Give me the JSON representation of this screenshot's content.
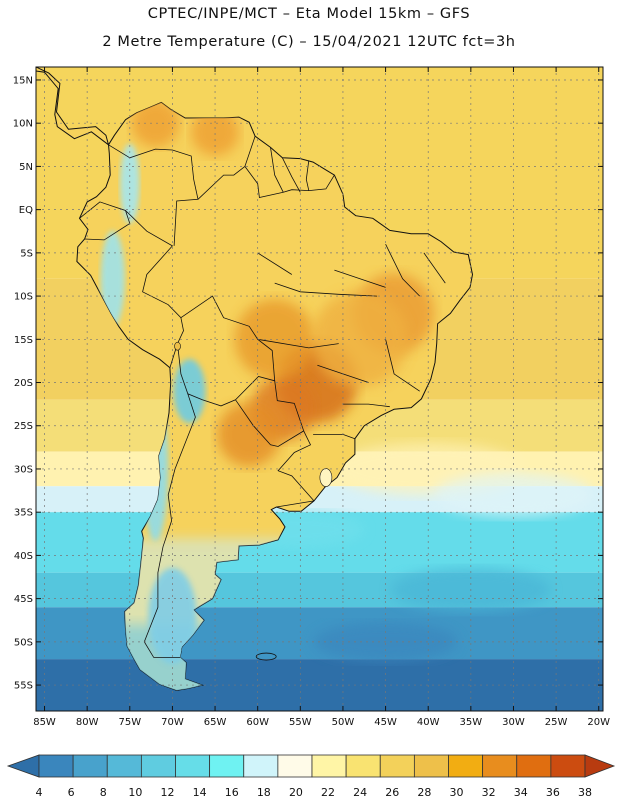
{
  "title": {
    "line1": "CPTEC/INPE/MCT –  Eta Model 15km – GFS",
    "line2": "2 Metre Temperature (C) – 15/04/2021 12UTC fct=3h"
  },
  "map": {
    "lon_min": -86,
    "lon_max": -19.5,
    "lat_min": -58,
    "lat_max": 16.5,
    "lat_ticks": [
      {
        "value": 15,
        "label": "15N"
      },
      {
        "value": 10,
        "label": "10N"
      },
      {
        "value": 5,
        "label": "5N"
      },
      {
        "value": 0,
        "label": "EQ"
      },
      {
        "value": -5,
        "label": "5S"
      },
      {
        "value": -10,
        "label": "10S"
      },
      {
        "value": -15,
        "label": "15S"
      },
      {
        "value": -20,
        "label": "20S"
      },
      {
        "value": -25,
        "label": "25S"
      },
      {
        "value": -30,
        "label": "30S"
      },
      {
        "value": -35,
        "label": "35S"
      },
      {
        "value": -40,
        "label": "40S"
      },
      {
        "value": -45,
        "label": "45S"
      },
      {
        "value": -50,
        "label": "50S"
      },
      {
        "value": -55,
        "label": "55S"
      }
    ],
    "lon_ticks": [
      {
        "value": -85,
        "label": "85W"
      },
      {
        "value": -80,
        "label": "80W"
      },
      {
        "value": -75,
        "label": "75W"
      },
      {
        "value": -70,
        "label": "70W"
      },
      {
        "value": -65,
        "label": "65W"
      },
      {
        "value": -60,
        "label": "60W"
      },
      {
        "value": -55,
        "label": "55W"
      },
      {
        "value": -50,
        "label": "50W"
      },
      {
        "value": -45,
        "label": "45W"
      },
      {
        "value": -40,
        "label": "40W"
      },
      {
        "value": -35,
        "label": "35W"
      },
      {
        "value": -30,
        "label": "30W"
      },
      {
        "value": -25,
        "label": "25W"
      },
      {
        "value": -20,
        "label": "20W"
      }
    ]
  },
  "colorbar": {
    "labels": [
      "4",
      "6",
      "8",
      "10",
      "12",
      "14",
      "16",
      "18",
      "20",
      "22",
      "24",
      "26",
      "28",
      "30",
      "32",
      "34",
      "36",
      "38"
    ],
    "colors": [
      "#2e6fa8",
      "#3a86bd",
      "#48a2cc",
      "#55b9d8",
      "#5fcce0",
      "#66dde8",
      "#6ff2f2",
      "#d0f4fa",
      "#fffbe8",
      "#fff5a6",
      "#f9e371",
      "#f3d15a",
      "#eec04a",
      "#f2ad12",
      "#e88d1e",
      "#e06e10",
      "#cc4c10",
      "#b83b10"
    ]
  },
  "fields": {
    "ocean_bands": [
      {
        "lat": 16.5,
        "color": "#f5d55c"
      },
      {
        "lat": -8,
        "color": "#f2d060"
      },
      {
        "lat": -22,
        "color": "#f4de78"
      },
      {
        "lat": -28,
        "color": "#fff2b0"
      },
      {
        "lat": -32,
        "color": "#d7f1f8"
      },
      {
        "lat": -35,
        "color": "#64dcea"
      },
      {
        "lat": -42,
        "color": "#55c6dd"
      },
      {
        "lat": -46,
        "color": "#3f96c5"
      },
      {
        "lat": -52,
        "color": "#2e6fa8"
      }
    ],
    "land_color": "#f6d25c",
    "hot_spots": [
      {
        "lon": -53,
        "lat": -20,
        "r": 5,
        "color": "#d46a18"
      },
      {
        "lon": -57,
        "lat": -23,
        "r": 4,
        "color": "#dc7820"
      },
      {
        "lon": -58,
        "lat": -15,
        "r": 5,
        "color": "#e89a2c"
      },
      {
        "lon": -61,
        "lat": -26,
        "r": 4,
        "color": "#e48d28"
      },
      {
        "lon": -44,
        "lat": -12,
        "r": 5,
        "color": "#ea9a30"
      },
      {
        "lon": -65,
        "lat": 9,
        "r": 3,
        "color": "#ee9f32"
      },
      {
        "lon": -72,
        "lat": 10,
        "r": 3,
        "color": "#ee9f32"
      },
      {
        "lon": -48,
        "lat": -15,
        "r": 6,
        "color": "#efb040"
      }
    ],
    "cool_zones": [
      {
        "lon": -72,
        "lat": -30,
        "rx": 1.6,
        "ry": 9,
        "color": "#8fdcea"
      },
      {
        "lon": -77,
        "lat": -8,
        "rx": 1.5,
        "ry": 6,
        "color": "#9fe2ea"
      },
      {
        "lon": -75,
        "lat": 3,
        "rx": 1.2,
        "ry": 5,
        "color": "#a6e6ef"
      },
      {
        "lon": -70,
        "lat": -47,
        "rx": 3,
        "ry": 6,
        "color": "#7fcde6"
      },
      {
        "lon": -68,
        "lat": -21,
        "rx": 2,
        "ry": 4,
        "color": "#6ecbe2"
      }
    ]
  }
}
